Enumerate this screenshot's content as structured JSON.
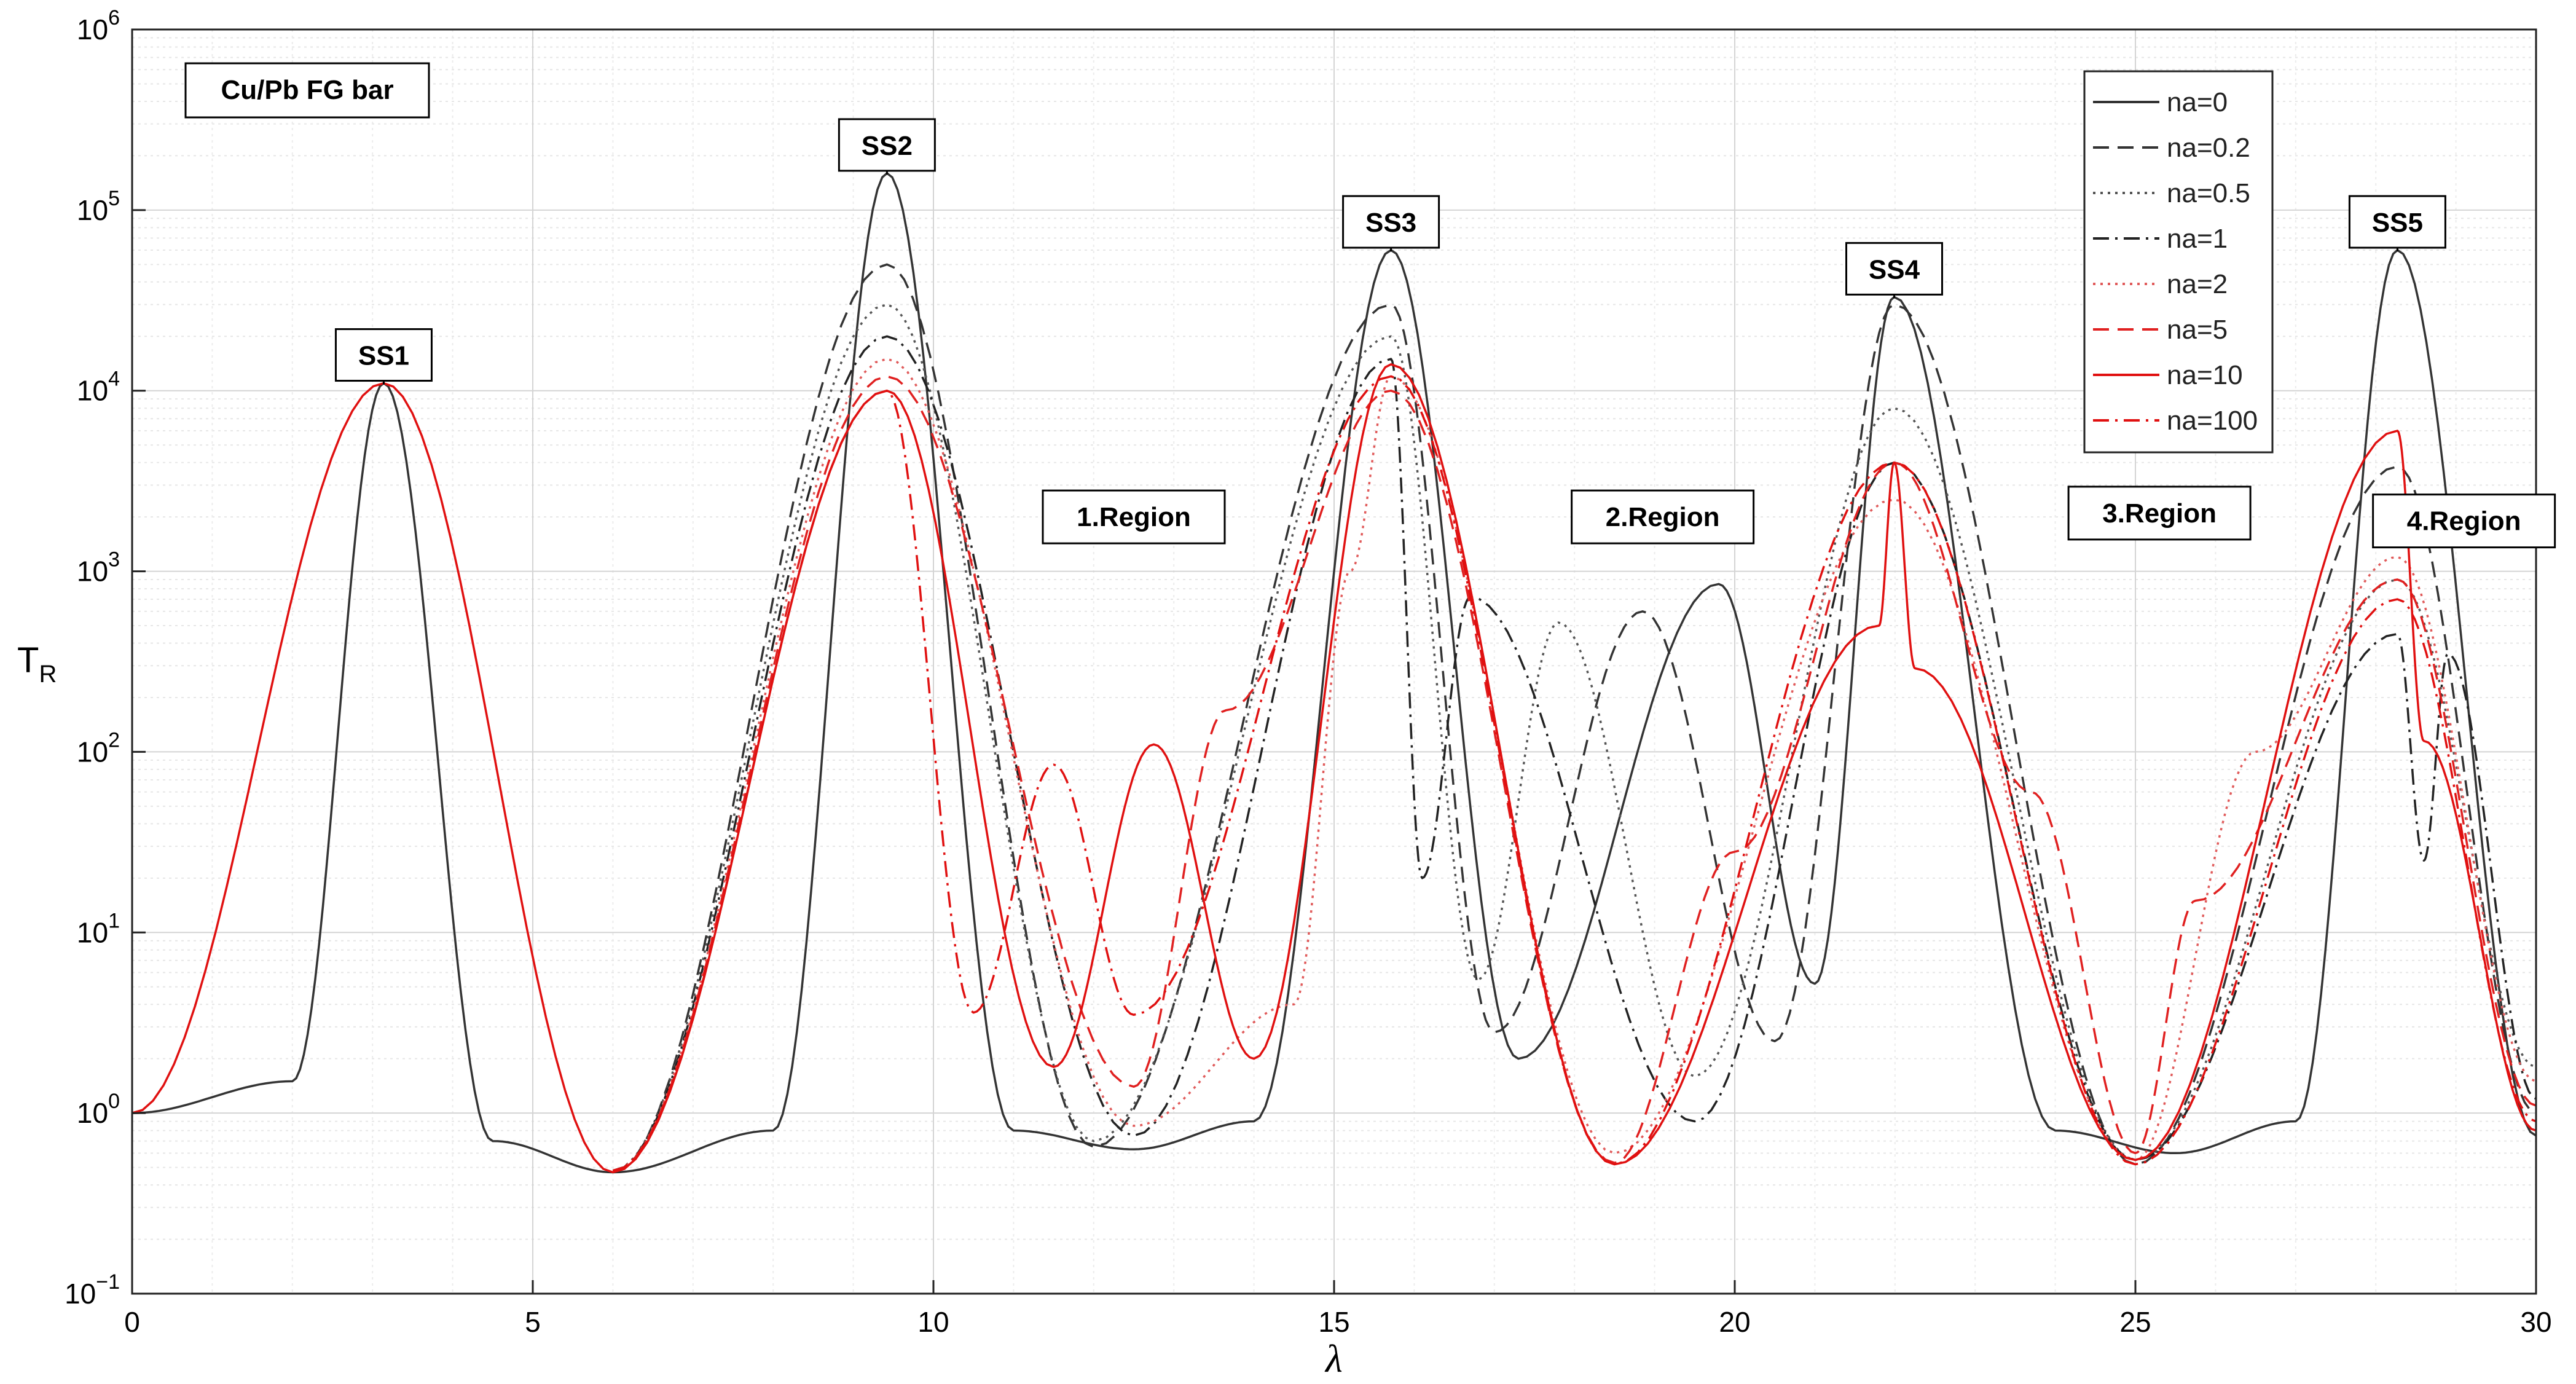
{
  "chart_data": {
    "type": "line",
    "title": "",
    "xlabel": "λ",
    "ylabel": "T_R",
    "ylabel_main": "T",
    "ylabel_sub": "R",
    "xscale": "linear",
    "yscale": "log",
    "xlim": [
      0,
      30
    ],
    "ylim_exp": [
      -1,
      6
    ],
    "xticks": [
      0,
      5,
      10,
      15,
      20,
      25,
      30
    ],
    "xtick_labels": [
      "0",
      "5",
      "10",
      "15",
      "20",
      "25",
      "30"
    ],
    "ytick_exponents": [
      -1,
      0,
      1,
      2,
      3,
      4,
      5,
      6
    ],
    "ytick_base": "10",
    "ytick_exp_labels": [
      "−1",
      "0",
      "1",
      "2",
      "3",
      "4",
      "5",
      "6"
    ],
    "grid": true,
    "legend_position": "top-right",
    "box_label": "Cu/Pb FG bar",
    "structure_resonances": [
      {
        "label": "SS1",
        "x": 3.14,
        "peak": 11000
      },
      {
        "label": "SS2",
        "x": 9.42,
        "peak": 160000
      },
      {
        "label": "SS3",
        "x": 15.71,
        "peak": 60000
      },
      {
        "label": "SS4",
        "x": 21.99,
        "peak": 33000
      },
      {
        "label": "SS5",
        "x": 28.27,
        "peak": 60000
      }
    ],
    "regions": [
      {
        "label": "1.Region",
        "x": 12.5,
        "y": 2000
      },
      {
        "label": "2.Region",
        "x": 19.1,
        "y": 2000
      },
      {
        "label": "3.Region",
        "x": 25.3,
        "y": 2100
      },
      {
        "label": "4.Region",
        "x": 29.1,
        "y": 1900
      }
    ],
    "series": [
      {
        "name": "na=0",
        "color": "#333333",
        "dash": "solid",
        "x": [
          0,
          2,
          3.14,
          4.5,
          6,
          8,
          9.42,
          11,
          12.5,
          14,
          15.71,
          17.3,
          19.8,
          21,
          21.99,
          24,
          25.5,
          27,
          28.27,
          30
        ],
        "y": [
          1.0,
          1.5,
          11000,
          0.7,
          0.47,
          0.8,
          160000,
          0.8,
          0.63,
          0.9,
          60000,
          2.0,
          850,
          5.2,
          33000,
          0.8,
          0.6,
          0.9,
          60000,
          0.75
        ]
      },
      {
        "name": "na=0.2",
        "color": "#333333",
        "dash": "dash",
        "x": [
          6,
          9.42,
          12,
          15.71,
          17.0,
          18.85,
          20.5,
          21.99,
          25,
          28.27,
          30
        ],
        "y": [
          0.47,
          50000,
          0.65,
          30000,
          2.8,
          600,
          2.5,
          30000,
          0.52,
          3800,
          1.0
        ]
      },
      {
        "name": "na=0.5",
        "color": "#555555",
        "dash": "dot",
        "x": [
          6,
          9.42,
          12,
          15.71,
          16.8,
          17.8,
          19.5,
          21.99,
          25,
          28.27,
          30
        ],
        "y": [
          0.48,
          30000,
          0.7,
          20000,
          5.5,
          520,
          1.6,
          8000,
          0.55,
          900,
          1.8
        ]
      },
      {
        "name": "na=1",
        "color": "#222222",
        "dash": "dashdot",
        "x": [
          6,
          9.42,
          12.5,
          15.71,
          16.1,
          16.7,
          19.5,
          21.99,
          25,
          28.27,
          28.6,
          28.9,
          30
        ],
        "y": [
          0.48,
          20000,
          0.75,
          15000,
          20,
          720,
          0.9,
          4000,
          0.55,
          450,
          25,
          350,
          1.2
        ]
      },
      {
        "name": "na=2",
        "color": "#e05a5a",
        "dash": "dot",
        "x": [
          6,
          9.42,
          12.5,
          14.5,
          15.2,
          15.71,
          18.5,
          21.99,
          25,
          26.5,
          28.27,
          30
        ],
        "y": [
          0.48,
          15000,
          0.85,
          4.0,
          1000,
          12000,
          0.6,
          2500,
          0.55,
          100,
          1200,
          1.5
        ]
      },
      {
        "name": "na=5",
        "color": "#e02020",
        "dash": "dash",
        "x": [
          6,
          9.42,
          12.5,
          13.65,
          15.71,
          18.5,
          20.0,
          21.99,
          23.7,
          25.0,
          25.75,
          28.27,
          30
        ],
        "y": [
          0.48,
          12000,
          1.4,
          170,
          10000,
          0.53,
          28,
          4000,
          60,
          0.6,
          15,
          900,
          1.1
        ]
      },
      {
        "name": "na=10",
        "color": "#e01010",
        "dash": "solid",
        "x": [
          0,
          3.14,
          6,
          9.42,
          11.5,
          12.75,
          14.0,
          15.71,
          18.5,
          21.8,
          21.99,
          22.25,
          25,
          28.27,
          28.6,
          30
        ],
        "y": [
          1.0,
          11000,
          0.47,
          10000,
          1.8,
          110,
          2.0,
          14000,
          0.52,
          500,
          4000,
          290,
          0.55,
          6000,
          115,
          0.8
        ]
      },
      {
        "name": "na=100",
        "color": "#e01010",
        "dash": "dashdot",
        "x": [
          6,
          9.42,
          10.5,
          11.5,
          12.5,
          15.71,
          18.5,
          21.99,
          25,
          28.27,
          30
        ],
        "y": [
          0.48,
          10000,
          3.6,
          85,
          3.5,
          12000,
          0.52,
          4000,
          0.52,
          700,
          0.9
        ]
      }
    ]
  }
}
